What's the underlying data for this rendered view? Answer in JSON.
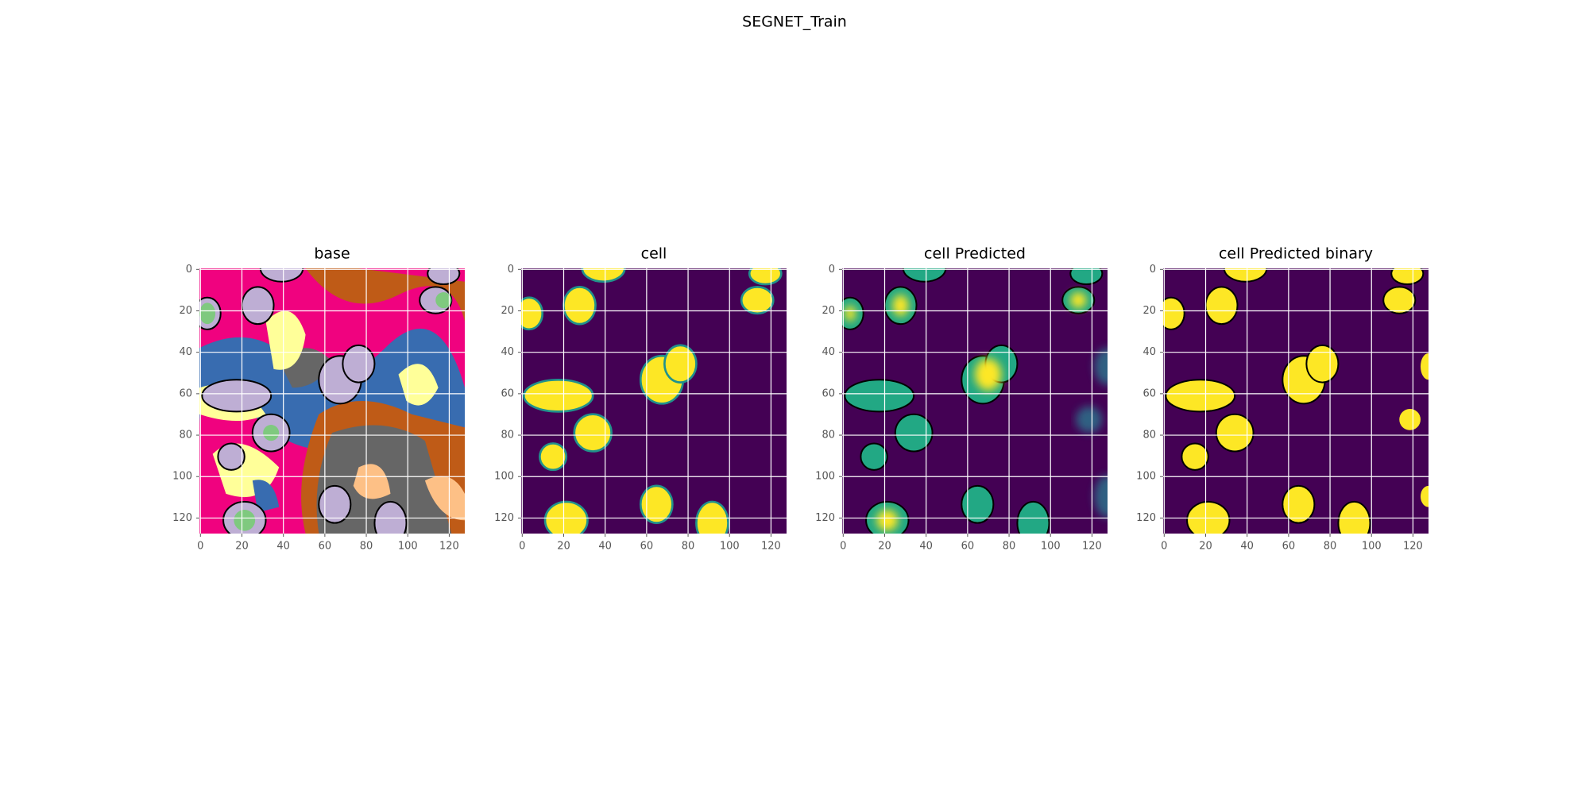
{
  "figure_title": "SEGNET_Train",
  "chart_data": [
    {
      "type": "image",
      "title": "base",
      "xlim": [
        -0.5,
        127.5
      ],
      "ylim": [
        127.5,
        -0.5
      ],
      "xticks": [
        0,
        20,
        40,
        60,
        80,
        100,
        120
      ],
      "yticks": [
        0,
        20,
        40,
        60,
        80,
        100,
        120
      ],
      "grid": true
    },
    {
      "type": "image",
      "title": "cell",
      "xlim": [
        -0.5,
        127.5
      ],
      "ylim": [
        127.5,
        -0.5
      ],
      "xticks": [
        0,
        20,
        40,
        60,
        80,
        100,
        120
      ],
      "yticks": [
        0,
        20,
        40,
        60,
        80,
        100,
        120
      ],
      "grid": true
    },
    {
      "type": "image",
      "title": "cell Predicted",
      "xlim": [
        -0.5,
        127.5
      ],
      "ylim": [
        127.5,
        -0.5
      ],
      "xticks": [
        0,
        20,
        40,
        60,
        80,
        100,
        120
      ],
      "yticks": [
        0,
        20,
        40,
        60,
        80,
        100,
        120
      ],
      "grid": true
    },
    {
      "type": "image",
      "title": "cell Predicted binary",
      "xlim": [
        -0.5,
        127.5
      ],
      "ylim": [
        127.5,
        -0.5
      ],
      "xticks": [
        0,
        20,
        40,
        60,
        80,
        100,
        120
      ],
      "yticks": [
        0,
        20,
        40,
        60,
        80,
        100,
        120
      ],
      "grid": true
    }
  ]
}
